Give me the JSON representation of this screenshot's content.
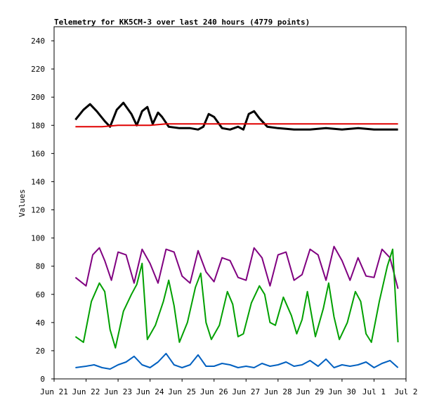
{
  "chart_data": {
    "type": "line",
    "title": "Telemetry for KK5CM-3 over last 240 hours (4779 points)",
    "ylabel": "Values",
    "xlabel": "",
    "ylim": [
      0,
      250
    ],
    "xlim": [
      "2023-06-21",
      "2023-07-02"
    ],
    "x_ticks": [
      "Jun 21",
      "Jun 22",
      "Jun 23",
      "Jun 24",
      "Jun 25",
      "Jun 26",
      "Jun 27",
      "Jun 28",
      "Jun 29",
      "Jun 30",
      "Jul 1",
      "Jul 2"
    ],
    "y_ticks": [
      0,
      20,
      40,
      60,
      80,
      100,
      120,
      140,
      160,
      180,
      200,
      220,
      240
    ],
    "grid": false,
    "legend": "none",
    "series": [
      {
        "color": "#000000",
        "x": [
          "2023-06-21T16:00",
          "2023-06-21T22:00",
          "2023-06-22T03:00",
          "2023-06-22T08:00",
          "2023-06-22T14:00",
          "2023-06-22T18:00",
          "2023-06-22T23:00",
          "2023-06-23T04:00",
          "2023-06-23T10:00",
          "2023-06-23T14:00",
          "2023-06-23T18:00",
          "2023-06-23T22:00",
          "2023-06-24T02:00",
          "2023-06-24T06:00",
          "2023-06-24T09:00",
          "2023-06-24T14:00",
          "2023-06-24T22:00",
          "2023-06-25T06:00",
          "2023-06-25T12:00",
          "2023-06-25T16:00",
          "2023-06-25T20:00",
          "2023-06-26T00:00",
          "2023-06-26T06:00",
          "2023-06-26T12:00",
          "2023-06-26T18:00",
          "2023-06-26T22:00",
          "2023-06-27T02:00",
          "2023-06-27T06:00",
          "2023-06-27T10:00",
          "2023-06-27T16:00",
          "2023-06-28T00:00",
          "2023-06-28T12:00",
          "2023-06-29T00:00",
          "2023-06-29T12:00",
          "2023-06-30T00:00",
          "2023-06-30T12:00",
          "2023-07-01T00:00",
          "2023-07-01T12:00",
          "2023-07-01T18:00"
        ],
        "y": [
          184,
          191,
          195,
          190,
          183,
          179,
          191,
          196,
          188,
          180,
          190,
          193,
          181,
          189,
          186,
          179,
          178,
          178,
          177,
          179,
          188,
          186,
          178,
          177,
          179,
          177,
          188,
          190,
          185,
          179,
          178,
          177,
          177,
          178,
          177,
          178,
          177,
          177,
          177
        ]
      },
      {
        "color": "#e00000",
        "x": [
          "2023-06-21T16:00",
          "2023-06-22T00:00",
          "2023-06-22T12:00",
          "2023-06-23T00:00",
          "2023-06-23T12:00",
          "2023-06-24T00:00",
          "2023-06-24T12:00",
          "2023-06-25T00:00",
          "2023-06-25T12:00",
          "2023-06-26T00:00",
          "2023-06-26T12:00",
          "2023-06-27T00:00",
          "2023-06-28T00:00",
          "2023-06-29T00:00",
          "2023-06-30T00:00",
          "2023-07-01T00:00",
          "2023-07-01T18:00"
        ],
        "y": [
          179,
          179,
          179,
          180,
          180,
          180,
          181,
          181,
          181,
          181,
          181,
          181,
          181,
          181,
          181,
          181,
          181
        ]
      },
      {
        "color": "#800080",
        "x": [
          "2023-06-21T16:00",
          "2023-06-22T00:00",
          "2023-06-22T05:00",
          "2023-06-22T10:00",
          "2023-06-22T14:00",
          "2023-06-22T19:00",
          "2023-06-23T00:00",
          "2023-06-23T06:00",
          "2023-06-23T12:00",
          "2023-06-23T18:00",
          "2023-06-24T00:00",
          "2023-06-24T06:00",
          "2023-06-24T12:00",
          "2023-06-24T18:00",
          "2023-06-25T00:00",
          "2023-06-25T06:00",
          "2023-06-25T12:00",
          "2023-06-25T18:00",
          "2023-06-26T00:00",
          "2023-06-26T06:00",
          "2023-06-26T12:00",
          "2023-06-26T18:00",
          "2023-06-27T00:00",
          "2023-06-27T06:00",
          "2023-06-27T12:00",
          "2023-06-27T18:00",
          "2023-06-28T00:00",
          "2023-06-28T06:00",
          "2023-06-28T12:00",
          "2023-06-28T18:00",
          "2023-06-29T00:00",
          "2023-06-29T06:00",
          "2023-06-29T12:00",
          "2023-06-29T18:00",
          "2023-06-30T00:00",
          "2023-06-30T06:00",
          "2023-06-30T12:00",
          "2023-06-30T18:00",
          "2023-07-01T00:00",
          "2023-07-01T06:00",
          "2023-07-01T12:00",
          "2023-07-01T18:00"
        ],
        "y": [
          72,
          66,
          88,
          93,
          84,
          70,
          90,
          88,
          68,
          92,
          82,
          68,
          92,
          90,
          73,
          68,
          91,
          76,
          69,
          86,
          84,
          72,
          70,
          93,
          86,
          66,
          88,
          90,
          70,
          74,
          92,
          88,
          70,
          94,
          84,
          70,
          86,
          73,
          72,
          92,
          86,
          64
        ]
      },
      {
        "color": "#00a000",
        "x": [
          "2023-06-21T16:00",
          "2023-06-21T22:00",
          "2023-06-22T04:00",
          "2023-06-22T10:00",
          "2023-06-22T14:00",
          "2023-06-22T18:00",
          "2023-06-22T22:00",
          "2023-06-23T04:00",
          "2023-06-23T10:00",
          "2023-06-23T14:00",
          "2023-06-23T18:00",
          "2023-06-23T22:00",
          "2023-06-24T04:00",
          "2023-06-24T10:00",
          "2023-06-24T14:00",
          "2023-06-24T18:00",
          "2023-06-24T22:00",
          "2023-06-25T04:00",
          "2023-06-25T10:00",
          "2023-06-25T14:00",
          "2023-06-25T18:00",
          "2023-06-25T22:00",
          "2023-06-26T04:00",
          "2023-06-26T10:00",
          "2023-06-26T14:00",
          "2023-06-26T18:00",
          "2023-06-26T22:00",
          "2023-06-27T04:00",
          "2023-06-27T10:00",
          "2023-06-27T14:00",
          "2023-06-27T18:00",
          "2023-06-27T22:00",
          "2023-06-28T04:00",
          "2023-06-28T10:00",
          "2023-06-28T14:00",
          "2023-06-28T18:00",
          "2023-06-28T22:00",
          "2023-06-29T04:00",
          "2023-06-29T10:00",
          "2023-06-29T14:00",
          "2023-06-29T18:00",
          "2023-06-29T22:00",
          "2023-06-30T04:00",
          "2023-06-30T10:00",
          "2023-06-30T14:00",
          "2023-06-30T18:00",
          "2023-06-30T22:00",
          "2023-07-01T04:00",
          "2023-07-01T10:00",
          "2023-07-01T14:00",
          "2023-07-01T18:00"
        ],
        "y": [
          30,
          26,
          55,
          68,
          62,
          35,
          22,
          48,
          60,
          67,
          82,
          28,
          38,
          55,
          70,
          52,
          26,
          40,
          65,
          75,
          40,
          28,
          38,
          62,
          53,
          30,
          32,
          54,
          66,
          60,
          40,
          38,
          58,
          45,
          32,
          42,
          62,
          30,
          50,
          68,
          44,
          28,
          40,
          62,
          55,
          32,
          26,
          55,
          80,
          92,
          26
        ]
      },
      {
        "color": "#0060c0",
        "x": [
          "2023-06-21T16:00",
          "2023-06-22T00:00",
          "2023-06-22T06:00",
          "2023-06-22T12:00",
          "2023-06-22T18:00",
          "2023-06-23T00:00",
          "2023-06-23T06:00",
          "2023-06-23T12:00",
          "2023-06-23T18:00",
          "2023-06-24T00:00",
          "2023-06-24T06:00",
          "2023-06-24T12:00",
          "2023-06-24T18:00",
          "2023-06-25T00:00",
          "2023-06-25T06:00",
          "2023-06-25T12:00",
          "2023-06-25T18:00",
          "2023-06-26T00:00",
          "2023-06-26T06:00",
          "2023-06-26T12:00",
          "2023-06-26T18:00",
          "2023-06-27T00:00",
          "2023-06-27T06:00",
          "2023-06-27T12:00",
          "2023-06-27T18:00",
          "2023-06-28T00:00",
          "2023-06-28T06:00",
          "2023-06-28T12:00",
          "2023-06-28T18:00",
          "2023-06-29T00:00",
          "2023-06-29T06:00",
          "2023-06-29T12:00",
          "2023-06-29T18:00",
          "2023-06-30T00:00",
          "2023-06-30T06:00",
          "2023-06-30T12:00",
          "2023-06-30T18:00",
          "2023-07-01T00:00",
          "2023-07-01T06:00",
          "2023-07-01T12:00",
          "2023-07-01T18:00"
        ],
        "y": [
          8,
          9,
          10,
          8,
          7,
          10,
          12,
          16,
          10,
          8,
          12,
          18,
          10,
          8,
          10,
          17,
          9,
          9,
          11,
          10,
          8,
          9,
          8,
          11,
          9,
          10,
          12,
          9,
          10,
          13,
          9,
          14,
          8,
          10,
          9,
          10,
          12,
          8,
          11,
          13,
          8
        ]
      }
    ]
  }
}
